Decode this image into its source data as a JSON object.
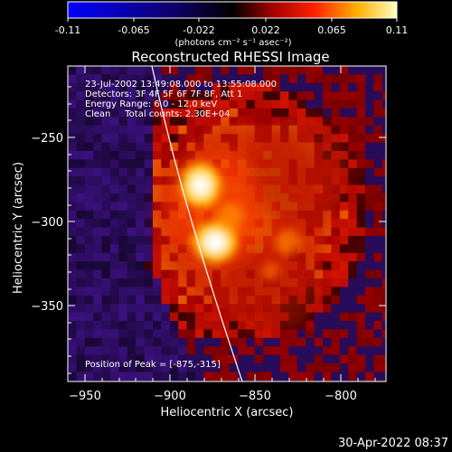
{
  "colorbar": {
    "tick_labels": [
      "-0.11",
      "-0.065",
      "-0.022",
      "0.022",
      "0.065",
      "0.11"
    ],
    "unit_label": "(photons cm⁻² s⁻¹ asec⁻²)"
  },
  "title": "Reconstructed RHESSI Image",
  "annotations": {
    "time_range": "23-Jul-2002 13:49:08.000 to 13:55:08.000",
    "detectors": "Detectors: 3F 4F 5F 6F 7F 8F, Att 1",
    "energy_range": "Energy Range: 6.0 - 12.0 keV",
    "clean_counts": "Clean     Total counts: 2.30E+04",
    "peak_position": "Position of Peak = [-875,-315]"
  },
  "axes": {
    "xlabel": "Heliocentric X (arcsec)",
    "ylabel": "Heliocentric Y (arcsec)",
    "x_ticks": [
      "−950",
      "−900",
      "−850",
      "−800"
    ],
    "y_ticks": [
      "−250",
      "−300",
      "−350"
    ]
  },
  "footer": {
    "timestamp": "30-Apr-2022 08:37"
  },
  "colors": {
    "background": "#000000",
    "limb_line": "#ffffff",
    "colormap": [
      "#0000ff",
      "#000000",
      "#ff0000",
      "#ffd000",
      "#ffffff"
    ]
  }
}
